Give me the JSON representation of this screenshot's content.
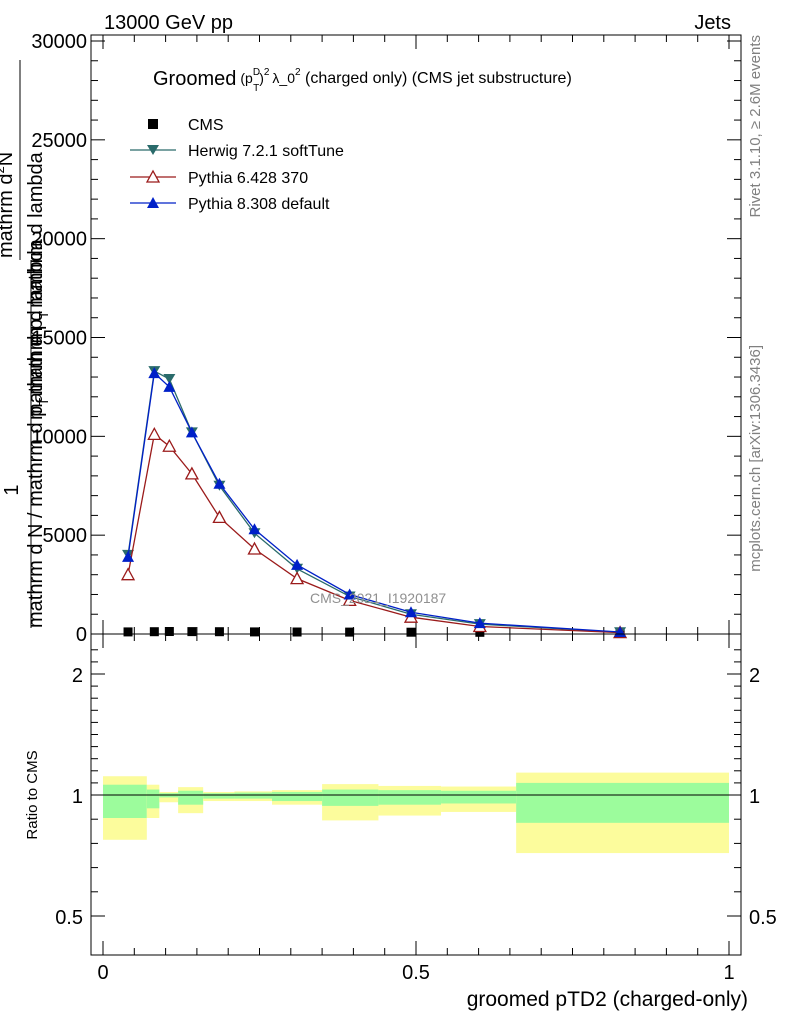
{
  "header": {
    "left": "13000 GeV pp",
    "right": "Jets"
  },
  "side_labels": {
    "rivet": "Rivet 3.1.10, ≥ 2.6M events",
    "mcplots": "mcplots.cern.ch [arXiv:1306.3436]"
  },
  "watermark": "CMS_2021_I1920187",
  "chart_data": [
    {
      "type": "line",
      "title": "Groomed (p_T^D)^2 λ_0^2  (charged only) (CMS jet substructure)",
      "title_parts": {
        "main": "Groomed",
        "pt": "p",
        "sup_d": "D",
        "sub_t": "T",
        "exp2": "2",
        "lam": "λ_0",
        "rest": "  (charged only) (CMS jet substructure)"
      },
      "ylabel_top": "mathrm d",
      "ylabel_full": "1 / mathrm d N / mathrm d p_T mathrm d lambda  mathrm d^2N / mathrm d p_T mathrm d lambda",
      "ylabel_parts": {
        "one": "1",
        "den_main": "mathrm d N / mathrm d p",
        "den_sub": "T",
        "den_tail": "mathrm d lambda",
        "num_main": "mathrm d",
        "num_sup": "2",
        "num_tail": "N",
        "den2_main": "mathrm d p",
        "den2_sub": "T",
        "den2_tail": "mathrm d lambda"
      },
      "xlim": [
        0,
        1
      ],
      "ylim": [
        0,
        30000
      ],
      "yticks": [
        0,
        5000,
        10000,
        15000,
        20000,
        25000,
        30000
      ],
      "ytick_labels": [
        "0",
        "5000",
        "10000",
        "15000",
        "20000",
        "25000",
        "30000"
      ],
      "legend_position": "top-left",
      "series": [
        {
          "name": "CMS",
          "marker": "square",
          "color": "#000000",
          "x": [
            0.04,
            0.082,
            0.106,
            0.142,
            0.186,
            0.242,
            0.31,
            0.394,
            0.492,
            0.602,
            0.826
          ],
          "y": [
            30,
            40,
            50,
            45,
            40,
            30,
            25,
            20,
            15,
            10,
            5
          ]
        },
        {
          "name": "Herwig 7.2.1 softTune",
          "marker": "triangle-down",
          "color": "#2a6b6b",
          "x": [
            0.04,
            0.082,
            0.106,
            0.142,
            0.186,
            0.242,
            0.31,
            0.394,
            0.492,
            0.602,
            0.826
          ],
          "y": [
            4000,
            13300,
            12900,
            10200,
            7500,
            5100,
            3300,
            1900,
            1000,
            500,
            90
          ]
        },
        {
          "name": "Pythia 6.428 370",
          "marker": "triangle-up-open",
          "color": "#9b1b1b",
          "x": [
            0.04,
            0.082,
            0.106,
            0.142,
            0.186,
            0.242,
            0.31,
            0.394,
            0.492,
            0.602,
            0.826
          ],
          "y": [
            3000,
            10100,
            9500,
            8100,
            5900,
            4300,
            2800,
            1700,
            850,
            380,
            70
          ]
        },
        {
          "name": "Pythia 8.308 default",
          "marker": "triangle-up",
          "color": "#0020c8",
          "x": [
            0.04,
            0.082,
            0.106,
            0.142,
            0.186,
            0.242,
            0.31,
            0.394,
            0.492,
            0.602,
            0.826
          ],
          "y": [
            3900,
            13200,
            12500,
            10200,
            7600,
            5300,
            3500,
            2000,
            1100,
            550,
            100
          ]
        }
      ]
    },
    {
      "type": "area",
      "ylabel": "Ratio to CMS",
      "xlabel": "groomed pTD2 (charged-only)",
      "xlim": [
        0,
        1
      ],
      "ylim": [
        0.3,
        2.3
      ],
      "yticks": [
        0.5,
        1,
        2
      ],
      "ytick_labels": [
        "0.5",
        "1",
        "2"
      ],
      "xticks": [
        0,
        0.5,
        1
      ],
      "xtick_labels": [
        "0",
        "0.5",
        "1"
      ],
      "bands": {
        "colors": {
          "stat": "#9cfc9c",
          "total": "#fcfc9c"
        },
        "bin_edges": [
          0,
          0.07,
          0.09,
          0.12,
          0.16,
          0.21,
          0.27,
          0.35,
          0.44,
          0.54,
          0.66,
          1.0
        ],
        "stat_lo": [
          0.905,
          0.945,
          0.99,
          0.96,
          0.985,
          0.985,
          0.975,
          0.955,
          0.96,
          0.965,
          0.885
        ],
        "stat_hi": [
          1.085,
          1.045,
          1.015,
          1.035,
          1.015,
          1.02,
          1.025,
          1.045,
          1.04,
          1.035,
          1.1
        ],
        "total_lo": [
          0.815,
          0.905,
          0.97,
          0.925,
          0.975,
          0.975,
          0.96,
          0.895,
          0.915,
          0.93,
          0.76
        ],
        "total_hi": [
          1.155,
          1.085,
          1.025,
          1.065,
          1.025,
          1.03,
          1.04,
          1.09,
          1.075,
          1.07,
          1.185
        ]
      },
      "reference_line": 1
    }
  ]
}
